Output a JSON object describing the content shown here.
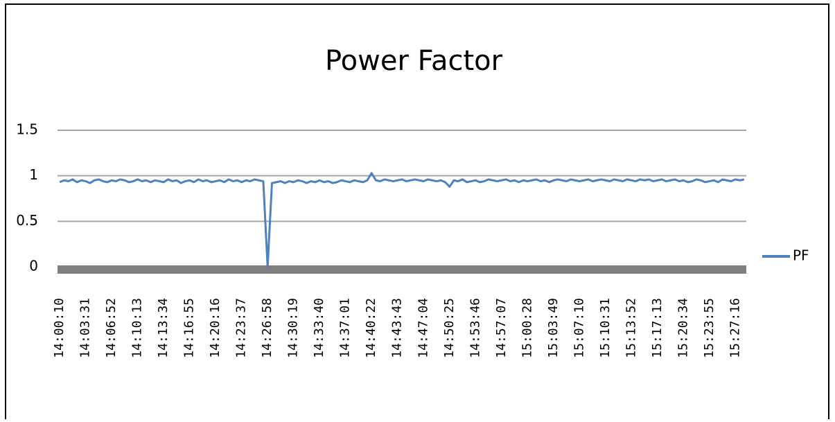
{
  "chart_data": {
    "type": "line",
    "title": "Power Factor",
    "categories": [
      "14:00:10",
      null,
      null,
      null,
      null,
      null,
      "14:03:31",
      null,
      null,
      null,
      null,
      null,
      "14:06:52",
      null,
      null,
      null,
      null,
      null,
      "14:10:13",
      null,
      null,
      null,
      null,
      null,
      "14:13:34",
      null,
      null,
      null,
      null,
      null,
      "14:16:55",
      null,
      null,
      null,
      null,
      null,
      "14:20:16",
      null,
      null,
      null,
      null,
      null,
      "14:23:37",
      null,
      null,
      null,
      null,
      null,
      "14:26:58",
      null,
      null,
      null,
      null,
      null,
      "14:30:19",
      null,
      null,
      null,
      null,
      null,
      "14:33:40",
      null,
      null,
      null,
      null,
      null,
      "14:37:01",
      null,
      null,
      null,
      null,
      null,
      "14:40:22",
      null,
      null,
      null,
      null,
      null,
      "14:43:43",
      null,
      null,
      null,
      null,
      null,
      "14:47:04",
      null,
      null,
      null,
      null,
      null,
      "14:50:25",
      null,
      null,
      null,
      null,
      null,
      "14:53:46",
      null,
      null,
      null,
      null,
      null,
      "14:57:07",
      null,
      null,
      null,
      null,
      null,
      "15:00:28",
      null,
      null,
      null,
      null,
      null,
      "15:03:49",
      null,
      null,
      null,
      null,
      null,
      "15:07:10",
      null,
      null,
      null,
      null,
      null,
      "15:10:31",
      null,
      null,
      null,
      null,
      null,
      "15:13:52",
      null,
      null,
      null,
      null,
      null,
      "15:17:13",
      null,
      null,
      null,
      null,
      null,
      "15:20:34",
      null,
      null,
      null,
      null,
      null,
      "15:23:55",
      null,
      null,
      null,
      null,
      null,
      "15:27:16",
      null,
      null
    ],
    "series": [
      {
        "name": "PF",
        "color": "#4f81bd",
        "values": [
          0.93,
          0.95,
          0.94,
          0.96,
          0.93,
          0.95,
          0.94,
          0.92,
          0.95,
          0.96,
          0.94,
          0.93,
          0.95,
          0.94,
          0.96,
          0.95,
          0.93,
          0.94,
          0.96,
          0.94,
          0.95,
          0.93,
          0.95,
          0.94,
          0.93,
          0.96,
          0.94,
          0.95,
          0.92,
          0.94,
          0.95,
          0.93,
          0.96,
          0.94,
          0.95,
          0.93,
          0.94,
          0.95,
          0.93,
          0.96,
          0.94,
          0.95,
          0.93,
          0.95,
          0.94,
          0.96,
          0.95,
          0.94,
          0,
          0.92,
          0.93,
          0.94,
          0.92,
          0.94,
          0.93,
          0.95,
          0.94,
          0.92,
          0.94,
          0.93,
          0.95,
          0.93,
          0.94,
          0.92,
          0.93,
          0.95,
          0.94,
          0.93,
          0.95,
          0.94,
          0.93,
          0.95,
          1.03,
          0.95,
          0.94,
          0.96,
          0.95,
          0.94,
          0.95,
          0.96,
          0.94,
          0.95,
          0.96,
          0.95,
          0.94,
          0.96,
          0.95,
          0.94,
          0.95,
          0.93,
          0.88,
          0.95,
          0.94,
          0.96,
          0.93,
          0.94,
          0.95,
          0.93,
          0.94,
          0.96,
          0.95,
          0.94,
          0.95,
          0.96,
          0.94,
          0.95,
          0.93,
          0.95,
          0.94,
          0.95,
          0.96,
          0.94,
          0.95,
          0.93,
          0.95,
          0.96,
          0.95,
          0.94,
          0.96,
          0.95,
          0.94,
          0.95,
          0.96,
          0.94,
          0.95,
          0.96,
          0.95,
          0.94,
          0.96,
          0.95,
          0.94,
          0.96,
          0.95,
          0.94,
          0.96,
          0.95,
          0.96,
          0.94,
          0.95,
          0.96,
          0.94,
          0.95,
          0.96,
          0.94,
          0.95,
          0.93,
          0.94,
          0.96,
          0.95,
          0.93,
          0.94,
          0.95,
          0.93,
          0.96,
          0.95,
          0.94,
          0.96,
          0.95,
          0.96
        ]
      }
    ],
    "ylim": [
      0,
      1.5
    ],
    "yticks": [
      0,
      0.5,
      1,
      1.5
    ],
    "grid": true,
    "legend": "right"
  }
}
